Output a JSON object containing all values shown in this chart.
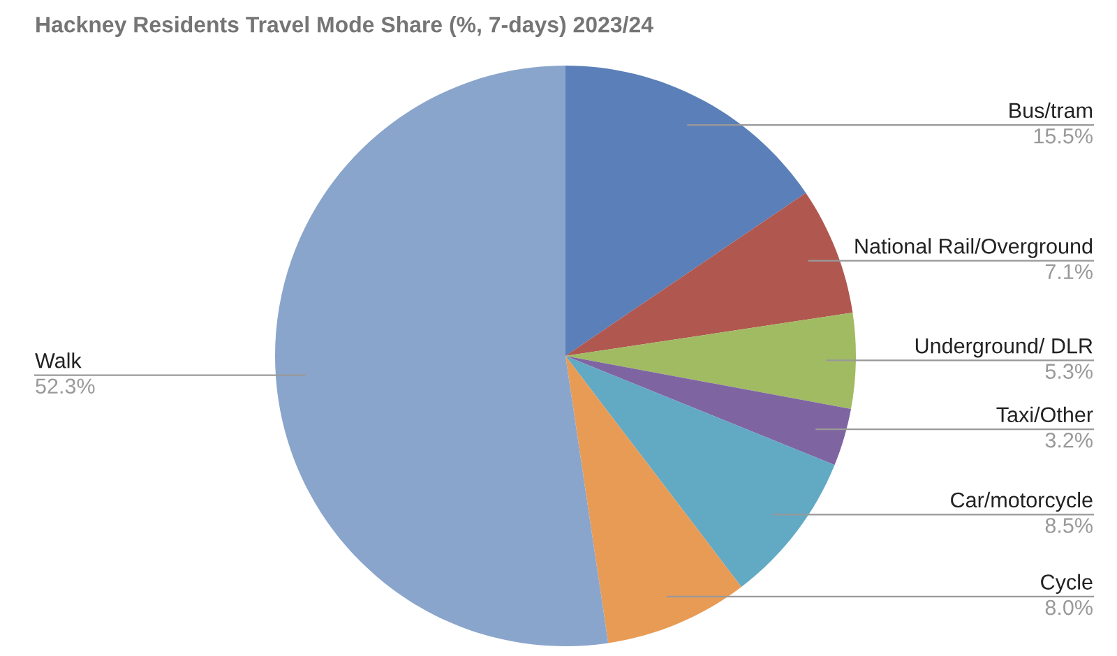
{
  "chart_data": {
    "type": "pie",
    "title": "Hackney Residents Travel Mode Share (%, 7-days) 2023/24",
    "categories": [
      "Bus/tram",
      "National Rail/Overground",
      "Underground/ DLR",
      "Taxi/Other",
      "Car/motorcycle",
      "Cycle",
      "Walk"
    ],
    "values": [
      15.5,
      7.1,
      5.3,
      3.2,
      8.5,
      8.0,
      52.3
    ],
    "colors": [
      "#5b7fb8",
      "#b0574f",
      "#a1bb63",
      "#7e65a2",
      "#62a9c4",
      "#e89b55",
      "#8aa5cc"
    ],
    "value_labels": [
      "15.5%",
      "7.1%",
      "5.3%",
      "3.2%",
      "8.5%",
      "8.0%",
      "52.3%"
    ],
    "legend": false
  }
}
